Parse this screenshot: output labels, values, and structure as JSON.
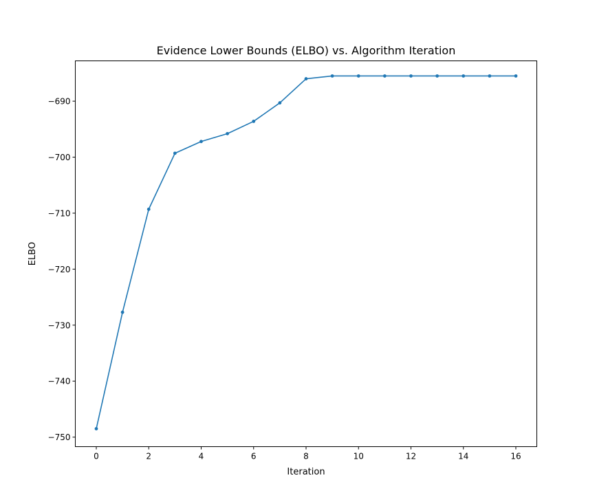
{
  "chart_data": {
    "type": "line",
    "title": "Evidence Lower Bounds (ELBO) vs. Algorithm Iteration",
    "xlabel": "Iteration",
    "ylabel": "ELBO",
    "xlim": [
      -0.8,
      16.8
    ],
    "ylim": [
      -751.7,
      -682.8
    ],
    "xticks": [
      0,
      2,
      4,
      6,
      8,
      10,
      12,
      14,
      16
    ],
    "yticks": [
      -750,
      -740,
      -730,
      -720,
      -710,
      -700,
      -690
    ],
    "ytick_labels": [
      "−750",
      "−740",
      "−730",
      "−720",
      "−710",
      "−700",
      "−690"
    ],
    "grid": false,
    "color": "#1f77b4",
    "series": [
      {
        "x": [
          0,
          1,
          2,
          3,
          4,
          5,
          6,
          7,
          8,
          9,
          10,
          11,
          12,
          13,
          14,
          15,
          16
        ],
        "values": [
          -748.5,
          -727.7,
          -709.3,
          -699.3,
          -697.2,
          -695.8,
          -693.6,
          -690.3,
          -686.0,
          -685.5,
          -685.5,
          -685.5,
          -685.5,
          -685.5,
          -685.5,
          -685.5,
          -685.5
        ]
      }
    ]
  }
}
